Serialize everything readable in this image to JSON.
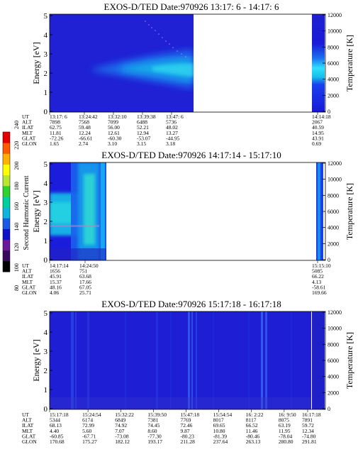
{
  "colorbar": {
    "label": "Second Harmonic Current",
    "ticks": [
      "80",
      "100",
      "120",
      "140",
      "160",
      "180",
      "200",
      "220",
      "240"
    ],
    "colors": [
      "#000000",
      "#3a0a5a",
      "#6a1a9a",
      "#1010c8",
      "#1a5ae6",
      "#10b4dc",
      "#00d0a0",
      "#30d230",
      "#b8e632",
      "#ffff00",
      "#ffb000",
      "#ff5a00",
      "#e60000"
    ]
  },
  "panels": [
    {
      "title": "EXOS-D/TED   Date:970926  13:17: 6 - 14:17: 6",
      "ylabel": "Energy [eV]",
      "rlabel": "Temperature [K]",
      "yticks": [
        "0",
        "1",
        "2",
        "3",
        "4",
        "5"
      ],
      "rticks": [
        "0",
        "2000",
        "4000",
        "6000",
        "8000",
        "10000",
        "12000"
      ],
      "data_end_fraction": 0.5,
      "ephem_labels": [
        "UT",
        "ALT",
        "ILAT",
        "MLT",
        "GLAT",
        "GLON"
      ],
      "ephem_columns": [
        [
          "13:17: 6",
          "7898",
          "62.75",
          "11.81",
          "-72.26",
          "1.65"
        ],
        [
          "13:24:42",
          "7568",
          "59.48",
          "12.24",
          "-66.61",
          "2.74"
        ],
        [
          "13:32:10",
          "7099",
          "56.00",
          "12.61",
          "-60.30",
          "3.10"
        ],
        [
          "13:39:38",
          "6488",
          "52.21",
          "12.94",
          "-53.07",
          "3.15"
        ],
        [
          "13:47: 6",
          "5736",
          "48.02",
          "13.27",
          "-44.95",
          "3.18"
        ],
        [
          "14:14:18",
          "2067",
          "40.59",
          "14.95",
          "43.91",
          "0.69"
        ]
      ]
    },
    {
      "title": "EXOS-D/TED   Date:970926  14:17:14 - 15:17:10",
      "ylabel": "Energy [eV]",
      "rlabel": "Temperature [K]",
      "yticks": [
        "0",
        "1",
        "2",
        "3",
        "4",
        "5"
      ],
      "rticks": [
        "0",
        "2000",
        "4000",
        "6000",
        "8000",
        "10000",
        "12000"
      ],
      "data_end_fraction": 0.3,
      "ephem_labels": [
        "UT",
        "ALT",
        "ILAT",
        "MLT",
        "GLAT",
        "GLON"
      ],
      "ephem_columns": [
        [
          "14:17:14",
          "1656",
          "45.91",
          "15.37",
          "48.16",
          "4.06"
        ],
        [
          "14:24:50",
          "751",
          "63.68",
          "17.66",
          "67.05",
          "25.71"
        ],
        [
          "15:15:10",
          "5085",
          "66.22",
          "4.13",
          "-58.61",
          "169.66"
        ]
      ]
    },
    {
      "title": "EXOS-D/TED   Date:970926  15:17:18 - 16:17:18",
      "ylabel": "Energy [eV]",
      "rlabel": "Temperature [K]",
      "yticks": [
        "0",
        "1",
        "2",
        "3",
        "4",
        "5"
      ],
      "rticks": [
        "0",
        "2000",
        "4000",
        "6000",
        "8000",
        "10000",
        "12000"
      ],
      "data_end_fraction": 1.0,
      "ephem_labels": [
        "UT",
        "ALT",
        "ILAT",
        "MLT",
        "GLAT",
        "GLON"
      ],
      "ephem_columns": [
        [
          "15:17:18",
          "5344",
          "68.13",
          "4.40",
          "-60.85",
          "170.68"
        ],
        [
          "15:24:54",
          "6174",
          "72.99",
          "5.60",
          "-67.71",
          "175.27"
        ],
        [
          "15:32:22",
          "6849",
          "74.92",
          "7.07",
          "-73.08",
          "182.12"
        ],
        [
          "15:39:50",
          "7381",
          "74.45",
          "8.60",
          "-77.30",
          "193.17"
        ],
        [
          "15:47:18",
          "7769",
          "72.46",
          "9.87",
          "-80.23",
          "211.28"
        ],
        [
          "15:54:54",
          "8017",
          "69.65",
          "10.80",
          "-81.39",
          "237.64"
        ],
        [
          "16: 2:22",
          "8117",
          "66.52",
          "11.46",
          "-80.46",
          "263.13"
        ],
        [
          "16: 9:50",
          "8075",
          "63.19",
          "11.95",
          "-78.04",
          "280.80"
        ],
        [
          "16:17:18",
          "7891",
          "59.72",
          "12.34",
          "-74.80",
          "291.81"
        ]
      ]
    }
  ]
}
